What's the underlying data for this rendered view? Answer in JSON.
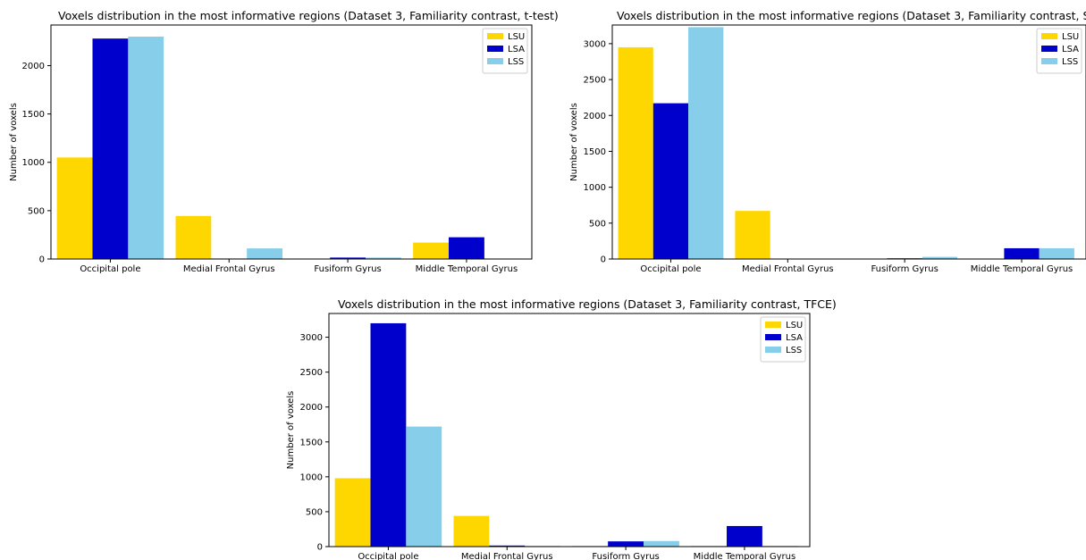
{
  "chart_data": [
    {
      "type": "bar",
      "title": "Voxels distribution in the most informative regions (Dataset 3, Familiarity contrast, t-test)",
      "xlabel": "",
      "ylabel": "Number of voxels",
      "categories": [
        "Occipital pole",
        "Medial Frontal Gyrus",
        "Fusiform Gyrus",
        "Middle Temporal Gyrus"
      ],
      "yticks": [
        0,
        500,
        1000,
        1500,
        2000
      ],
      "ylim": [
        0,
        2420
      ],
      "legend_position": "top-right",
      "series": [
        {
          "name": "LSU",
          "color": "#FFD700",
          "values": [
            1050,
            445,
            5,
            170
          ]
        },
        {
          "name": "LSA",
          "color": "#0000CD",
          "values": [
            2280,
            5,
            15,
            225
          ]
        },
        {
          "name": "LSS",
          "color": "#87CEEB",
          "values": [
            2300,
            110,
            15,
            5
          ]
        }
      ]
    },
    {
      "type": "bar",
      "title": "Voxels distribution in the most informative regions (Dataset 3, Familiarity contrast, Stelzer)",
      "xlabel": "",
      "ylabel": "Number of voxels",
      "categories": [
        "Occipital pole",
        "Medial Frontal Gyrus",
        "Fusiform Gyrus",
        "Middle Temporal Gyrus"
      ],
      "yticks": [
        0,
        500,
        1000,
        1500,
        2000,
        2500,
        3000
      ],
      "ylim": [
        0,
        3260
      ],
      "legend_position": "top-right",
      "series": [
        {
          "name": "LSU",
          "color": "#FFD700",
          "values": [
            2950,
            670,
            5,
            5
          ]
        },
        {
          "name": "LSA",
          "color": "#0000CD",
          "values": [
            2170,
            5,
            10,
            150
          ]
        },
        {
          "name": "LSS",
          "color": "#87CEEB",
          "values": [
            3230,
            5,
            30,
            150
          ]
        }
      ]
    },
    {
      "type": "bar",
      "title": "Voxels distribution in the most informative regions (Dataset 3, Familiarity contrast, TFCE)",
      "xlabel": "",
      "ylabel": "Number of voxels",
      "categories": [
        "Occipital pole",
        "Medial Frontal Gyrus",
        "Fusiform Gyrus",
        "Middle Temporal Gyrus"
      ],
      "yticks": [
        0,
        500,
        1000,
        1500,
        2000,
        2500,
        3000
      ],
      "ylim": [
        0,
        3340
      ],
      "legend_position": "top-right",
      "series": [
        {
          "name": "LSU",
          "color": "#FFD700",
          "values": [
            980,
            440,
            10,
            10
          ]
        },
        {
          "name": "LSA",
          "color": "#0000CD",
          "values": [
            3200,
            15,
            75,
            295
          ]
        },
        {
          "name": "LSS",
          "color": "#87CEEB",
          "values": [
            1720,
            10,
            80,
            10
          ]
        }
      ]
    }
  ]
}
